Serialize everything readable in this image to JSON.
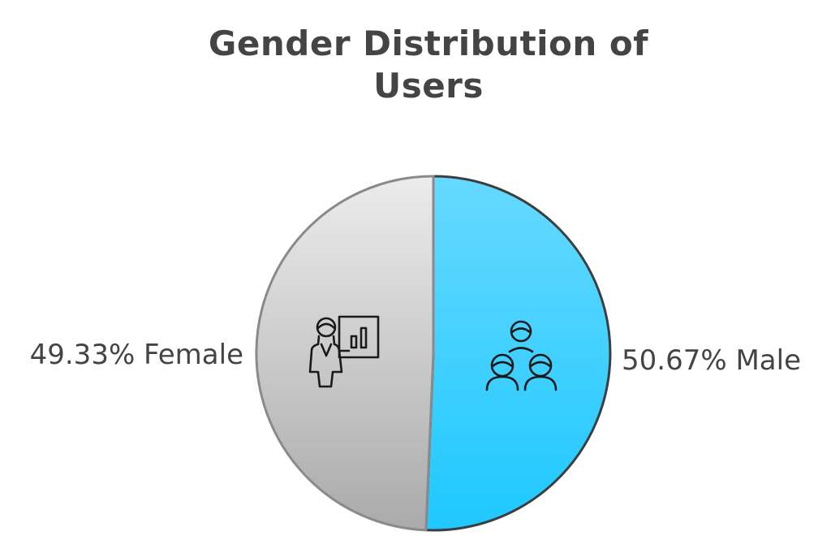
{
  "chart_data": {
    "type": "pie",
    "title": "Gender Distribution of Users",
    "title_lines": [
      "Gender Distribution of",
      "Users"
    ],
    "slices": [
      {
        "label": "Male",
        "value": 50.67,
        "display": "50.67% Male",
        "color": "#1EC8FF",
        "color_light": "#66D9FF",
        "icon": "group-of-people-icon"
      },
      {
        "label": "Female",
        "value": 49.33,
        "display": "49.33% Female",
        "color": "#AAAAAA",
        "color_light": "#ECECEC",
        "icon": "woman-presenting-chart-icon"
      }
    ],
    "start_angle": "12 o'clock",
    "direction": "clockwise",
    "legend": "none"
  }
}
